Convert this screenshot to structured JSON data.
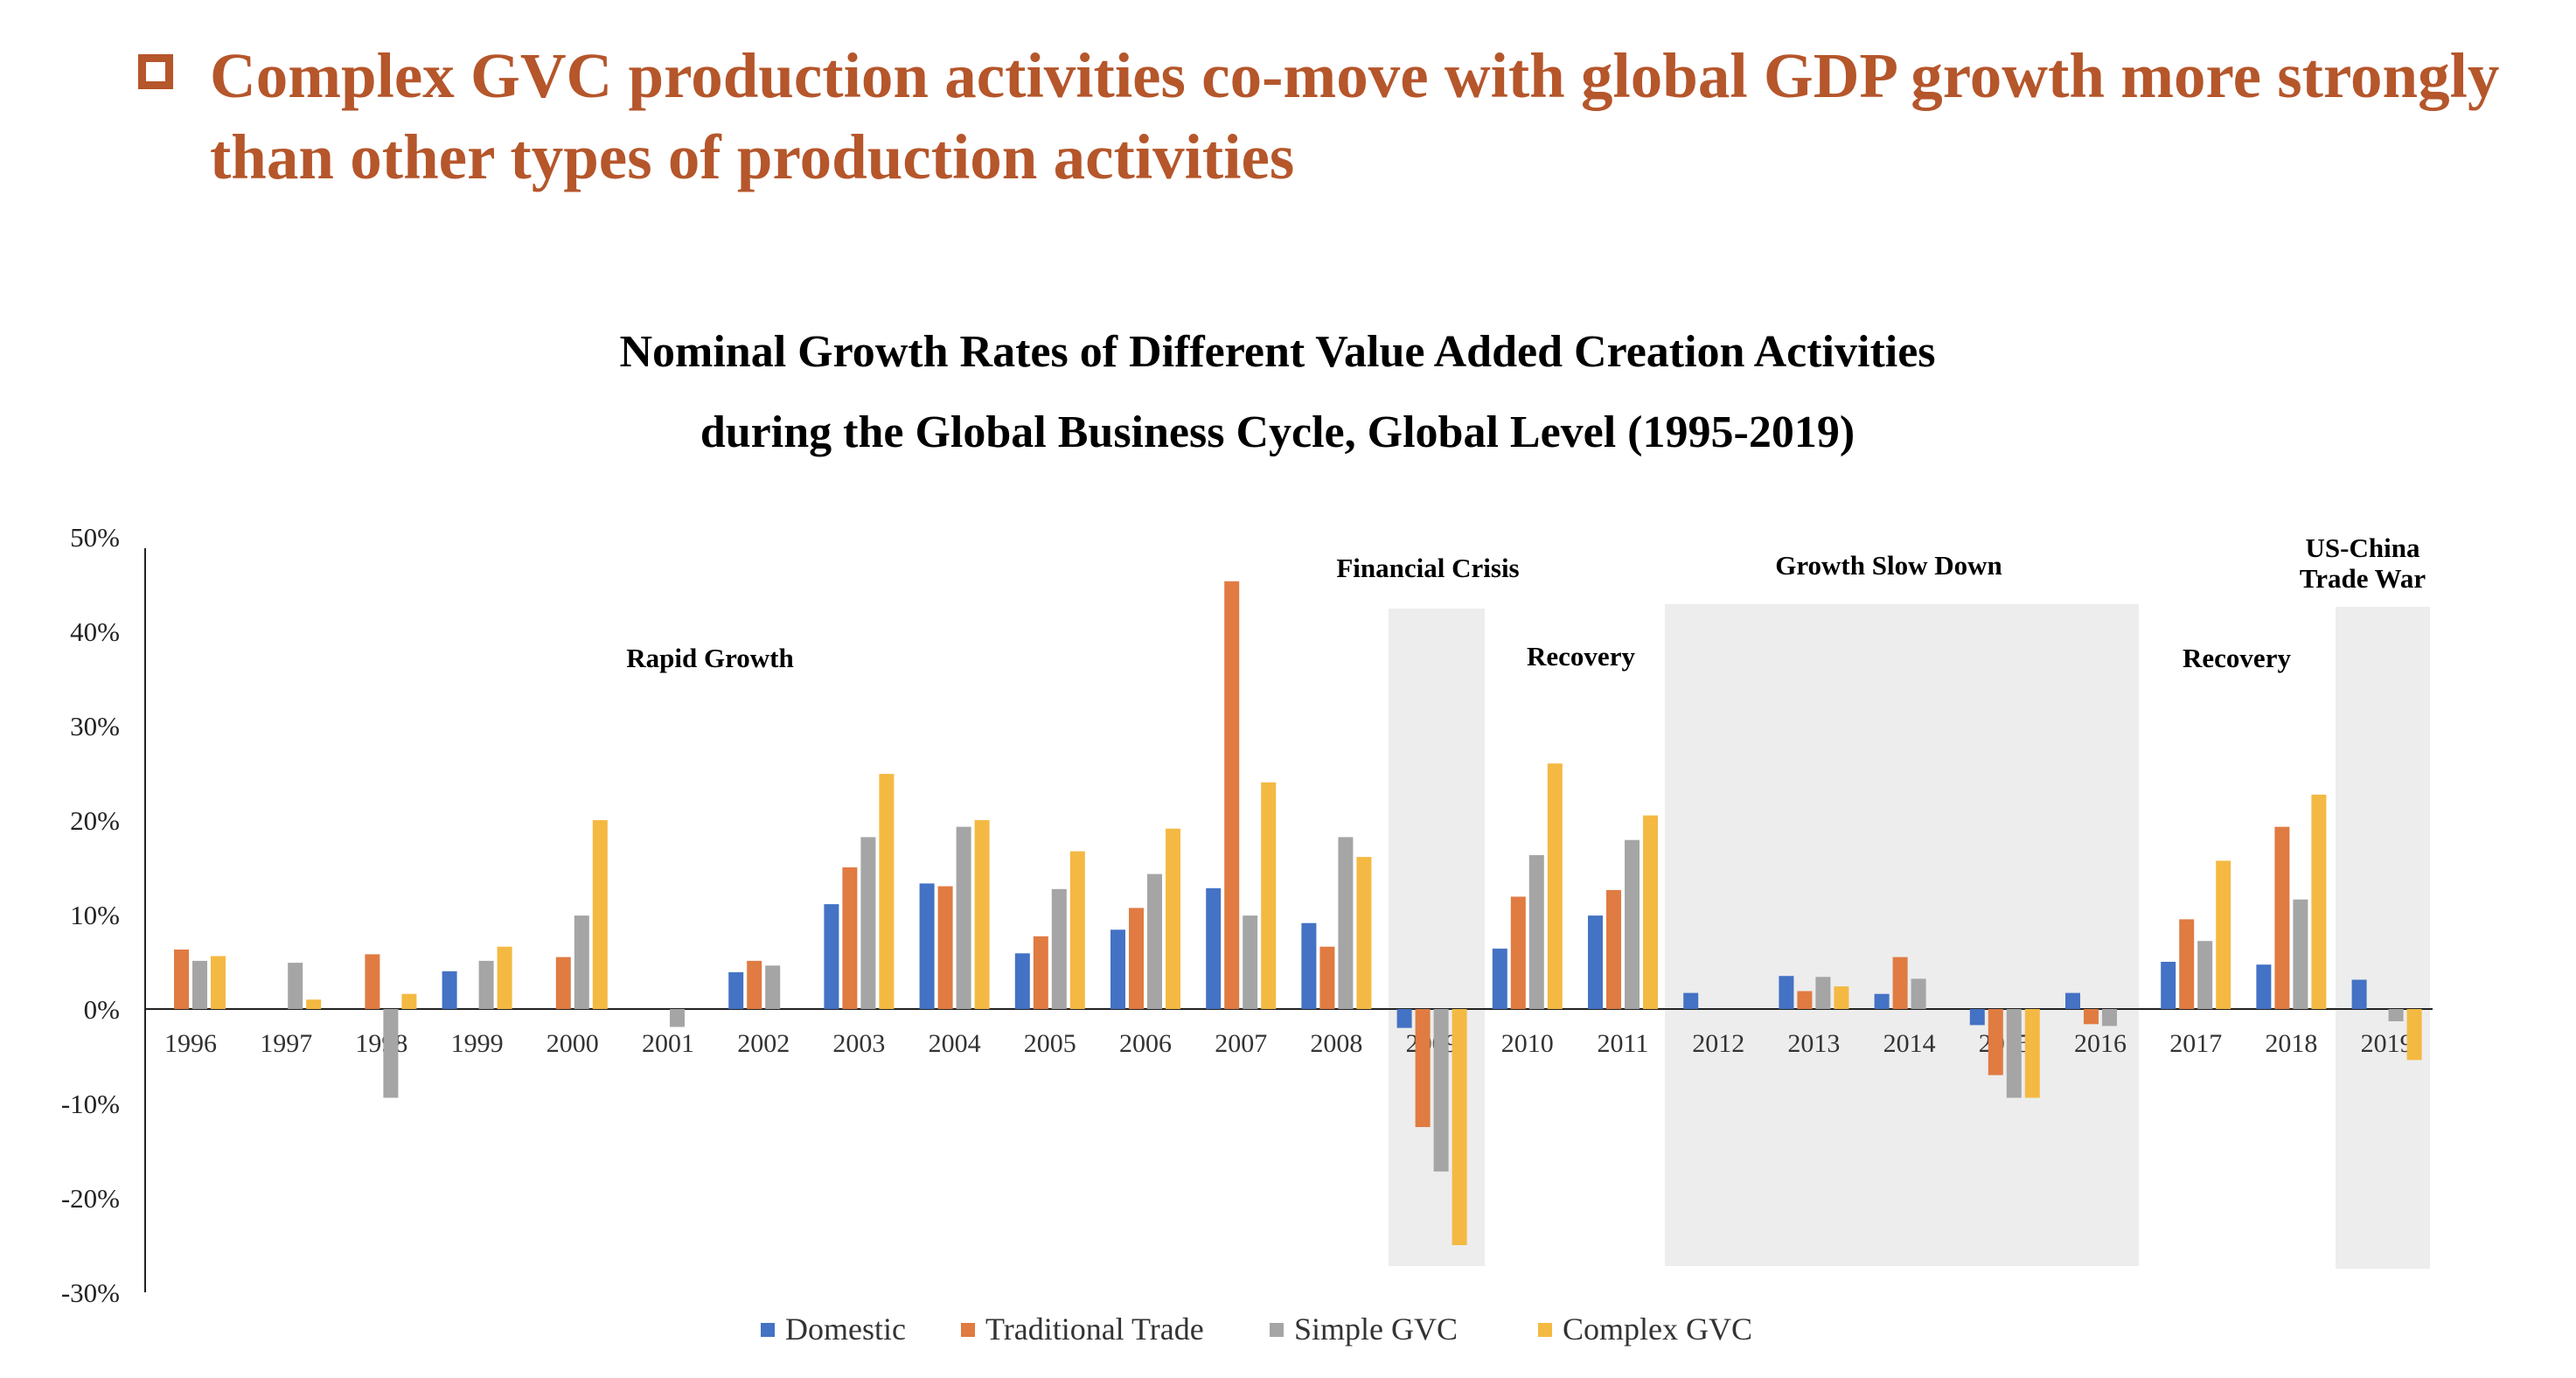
{
  "header": {
    "text": "Complex GVC production activities co-move with global GDP growth more strongly than other types of production activities"
  },
  "colors": {
    "header": "#b5562b",
    "shading": "#ededed",
    "axis": "#222222"
  },
  "chart_data": {
    "type": "bar",
    "title": [
      "Nominal Growth Rates of Different Value Added Creation Activities",
      "during the Global Business Cycle, Global Level (1995-2019)"
    ],
    "ylim": [
      -30,
      50
    ],
    "yticks": [
      50,
      40,
      30,
      20,
      10,
      0,
      -10,
      -20,
      -30
    ],
    "ytick_labels": [
      "50%",
      "40%",
      "30%",
      "20%",
      "10%",
      "0%",
      "-10%",
      "-20%",
      "-30%"
    ],
    "grid": false,
    "legend_position": "bottom",
    "categories": [
      "1996",
      "1997",
      "1998",
      "1999",
      "2000",
      "2001",
      "2002",
      "2003",
      "2004",
      "2005",
      "2006",
      "2007",
      "2008",
      "2009",
      "2010",
      "2011",
      "2012",
      "2013",
      "2014",
      "2015",
      "2016",
      "2017",
      "2018",
      "2019"
    ],
    "series": [
      {
        "name": "Domestic",
        "color": "#4472c4",
        "values": [
          0,
          0,
          0,
          4.0,
          0,
          0,
          3.9,
          11.1,
          13.3,
          5.9,
          8.4,
          12.8,
          9.1,
          -2.0,
          6.4,
          9.9,
          1.7,
          3.5,
          1.6,
          -1.7,
          1.7,
          5.0,
          4.7,
          3.1
        ]
      },
      {
        "name": "Traditional Trade",
        "color": "#e07b42",
        "values": [
          6.3,
          0,
          5.8,
          0,
          5.5,
          0,
          5.1,
          15.0,
          13.0,
          7.7,
          10.7,
          45.3,
          6.6,
          -12.5,
          11.9,
          12.6,
          0,
          1.9,
          5.5,
          -7.0,
          -1.6,
          9.5,
          19.3,
          0
        ]
      },
      {
        "name": "Simple GVC",
        "color": "#a5a5a5",
        "values": [
          5.1,
          4.9,
          -9.4,
          5.1,
          9.9,
          -1.9,
          4.6,
          18.2,
          19.3,
          12.7,
          14.3,
          9.9,
          18.2,
          -17.2,
          16.3,
          17.9,
          0,
          3.4,
          3.2,
          -9.4,
          -1.8,
          7.2,
          11.6,
          -1.3
        ]
      },
      {
        "name": "Complex GVC",
        "color": "#f4b942",
        "values": [
          5.6,
          1.0,
          1.6,
          6.6,
          20.0,
          0,
          0,
          24.9,
          20.0,
          16.7,
          19.1,
          24.0,
          16.1,
          -25.0,
          26.0,
          20.5,
          0,
          2.4,
          0,
          -9.4,
          0,
          15.7,
          22.7,
          -5.4
        ]
      }
    ],
    "annotations": [
      {
        "text": "Rapid Growth"
      },
      {
        "text": "Financial Crisis"
      },
      {
        "text": "Recovery"
      },
      {
        "text": "Growth Slow Down"
      },
      {
        "text": "Recovery"
      },
      {
        "text": "US-China Trade War"
      }
    ]
  }
}
